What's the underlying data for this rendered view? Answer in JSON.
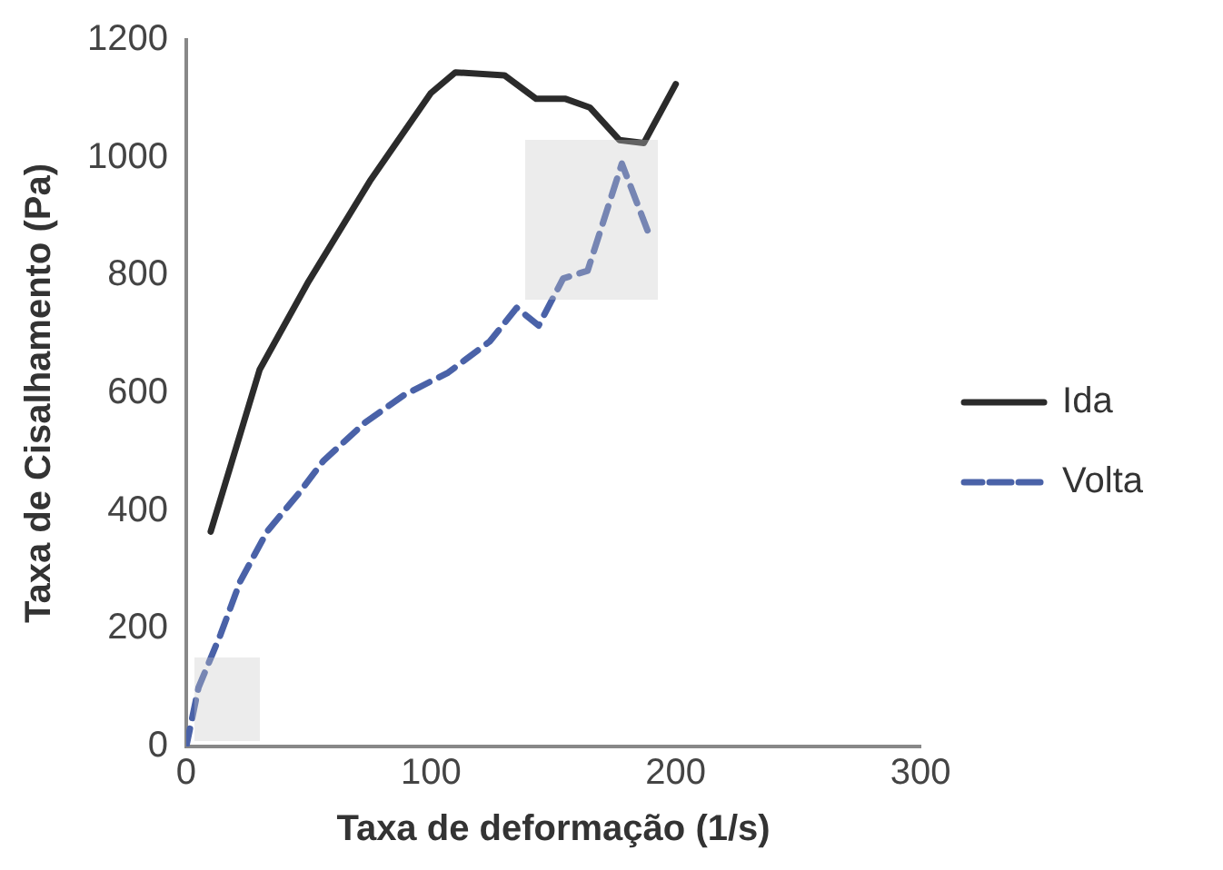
{
  "chart_data": {
    "type": "line",
    "xlabel": "Taxa de deformação (1/s)",
    "ylabel": "Taxa de Cisalhamento (Pa)",
    "xlim": [
      0,
      300
    ],
    "xticks": [
      0,
      100,
      200,
      300
    ],
    "ylim": [
      0,
      1200
    ],
    "yticks": [
      0,
      200,
      400,
      600,
      800,
      1000,
      1200
    ],
    "grid": false,
    "legend": "right",
    "marker": "none",
    "series": [
      {
        "name": "Ida",
        "color": "#2b2b2b",
        "line_style": "solid",
        "x": [
          10,
          30,
          50,
          75,
          100,
          110,
          130,
          143,
          155,
          165,
          177,
          187,
          200
        ],
        "values": [
          365,
          640,
          790,
          960,
          1110,
          1145,
          1140,
          1100,
          1100,
          1085,
          1030,
          1025,
          1125
        ]
      },
      {
        "name": "Volta",
        "color": "#4a62a8",
        "line_style": "dashed",
        "x": [
          0,
          5,
          14,
          22,
          33,
          46,
          56,
          73,
          89,
          107,
          124,
          135,
          144,
          154,
          164,
          178,
          190
        ],
        "values": [
          0,
          100,
          190,
          280,
          365,
          430,
          485,
          550,
          597,
          635,
          688,
          745,
          715,
          795,
          808,
          990,
          860
        ]
      }
    ]
  }
}
